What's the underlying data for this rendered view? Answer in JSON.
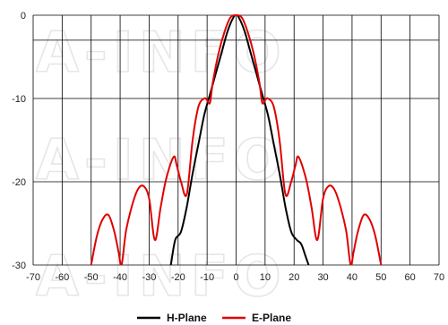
{
  "watermark": "A-INFO",
  "chart_data": {
    "type": "line",
    "title": "",
    "xlabel": "",
    "ylabel": "",
    "xlim": [
      -70,
      70
    ],
    "ylim": [
      -30,
      0
    ],
    "xticks": [
      -70,
      -60,
      -50,
      -40,
      -30,
      -20,
      -10,
      0,
      10,
      20,
      30,
      40,
      50,
      60,
      70
    ],
    "yticks": [
      0,
      -10,
      -20,
      -30
    ],
    "grid": true,
    "reference_line_y": -3,
    "legend_position": "bottom",
    "colors": {
      "H-Plane": "#000000",
      "E-Plane": "#e00000",
      "grid": "#000000"
    },
    "series": [
      {
        "name": "H-Plane",
        "x": [
          -22.5,
          -21,
          -19,
          -17,
          -15,
          -13,
          -11,
          -9,
          -7,
          -5,
          -3,
          -1,
          0,
          1,
          3,
          5,
          7,
          9,
          11,
          13,
          15,
          17,
          19,
          21,
          22.5,
          24,
          25
        ],
        "y": [
          -30,
          -27,
          -26,
          -23,
          -19,
          -15.5,
          -12,
          -9.5,
          -7,
          -4.5,
          -2,
          -0.3,
          0,
          -0.3,
          -2,
          -4.5,
          -7,
          -9.5,
          -12,
          -15.5,
          -19,
          -23,
          -26,
          -27,
          -27.5,
          -29,
          -30
        ]
      },
      {
        "name": "E-Plane",
        "x": [
          -50,
          -48,
          -46,
          -44,
          -42,
          -40.5,
          -39.5,
          -38,
          -36,
          -34,
          -32,
          -30,
          -28,
          -26,
          -24,
          -21.5,
          -20.5,
          -19,
          -17,
          -15,
          -13,
          -11,
          -10,
          -9,
          -8,
          -6,
          -4,
          -2,
          0,
          2,
          4,
          6,
          8,
          9,
          10,
          11,
          13,
          15,
          17,
          19,
          20.5,
          21.5,
          24,
          26,
          28,
          30,
          32,
          34,
          36,
          38,
          39.5,
          40.5,
          42,
          44,
          46,
          48,
          50
        ],
        "y": [
          -30,
          -26.5,
          -24.5,
          -24,
          -26,
          -28.5,
          -30,
          -26,
          -23,
          -21,
          -20.5,
          -22,
          -27,
          -23,
          -19.5,
          -17,
          -18,
          -20,
          -21.5,
          -15,
          -11,
          -10,
          -10.2,
          -10.5,
          -8,
          -4.5,
          -2,
          -0.3,
          0,
          -0.3,
          -2,
          -4.5,
          -8,
          -10.5,
          -10.2,
          -10,
          -11,
          -15,
          -21.5,
          -20,
          -18,
          -17,
          -19.5,
          -23,
          -27,
          -22,
          -20.5,
          -21,
          -23,
          -26,
          -30,
          -28.5,
          -26,
          -24,
          -24.5,
          -26.5,
          -30
        ]
      }
    ]
  }
}
